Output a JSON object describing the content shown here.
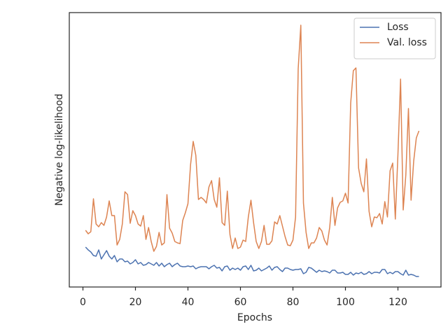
{
  "chart_data": {
    "type": "line",
    "xlabel": "Epochs",
    "ylabel": "Negative log-likelihood",
    "x": [
      1,
      2,
      3,
      4,
      5,
      6,
      7,
      8,
      9,
      10,
      11,
      12,
      13,
      14,
      15,
      16,
      17,
      18,
      19,
      20,
      21,
      22,
      23,
      24,
      25,
      26,
      27,
      28,
      29,
      30,
      31,
      32,
      33,
      34,
      35,
      36,
      37,
      38,
      39,
      40,
      41,
      42,
      43,
      44,
      45,
      46,
      47,
      48,
      49,
      50,
      51,
      52,
      53,
      54,
      55,
      56,
      57,
      58,
      59,
      60,
      61,
      62,
      63,
      64,
      65,
      66,
      67,
      68,
      69,
      70,
      71,
      72,
      73,
      74,
      75,
      76,
      77,
      78,
      79,
      80,
      81,
      82,
      83,
      84,
      85,
      86,
      87,
      88,
      89,
      90,
      91,
      92,
      93,
      94,
      95,
      96,
      97,
      98,
      99,
      100,
      101,
      102,
      103,
      104,
      105,
      106,
      107,
      108,
      109,
      110,
      111,
      112,
      113,
      114,
      115,
      116,
      117,
      118,
      119,
      120,
      121,
      122,
      123,
      124,
      125,
      126,
      127,
      128
    ],
    "series": [
      {
        "name": "Loss",
        "color": "#4c72b0",
        "values": [
          57,
          53,
          50,
          45,
          44,
          53,
          40,
          46,
          52,
          44,
          40,
          45,
          36,
          40,
          40,
          36,
          37,
          33,
          35,
          39,
          33,
          35,
          31,
          32,
          35,
          33,
          31,
          35,
          30,
          34,
          29,
          32,
          34,
          29,
          32,
          34,
          30,
          29,
          29,
          30,
          29,
          30,
          26,
          28,
          29,
          29,
          29,
          26,
          29,
          31,
          27,
          28,
          23,
          29,
          30,
          24,
          27,
          25,
          27,
          24,
          29,
          30,
          25,
          31,
          23,
          24,
          27,
          23,
          25,
          27,
          30,
          24,
          28,
          29,
          25,
          22,
          27,
          27,
          25,
          24,
          25,
          25,
          26,
          19,
          21,
          28,
          27,
          24,
          21,
          24,
          22,
          23,
          22,
          20,
          24,
          24,
          20,
          20,
          21,
          18,
          18,
          21,
          17,
          20,
          19,
          21,
          18,
          19,
          22,
          19,
          21,
          21,
          20,
          25,
          25,
          19,
          21,
          19,
          22,
          22,
          19,
          17,
          24,
          17,
          18,
          17,
          15,
          15
        ]
      },
      {
        "name": "Val. loss",
        "color": "#dd8452",
        "values": [
          81,
          76,
          79,
          126,
          90,
          86,
          92,
          88,
          100,
          123,
          102,
          102,
          60,
          68,
          90,
          136,
          132,
          91,
          109,
          102,
          90,
          87,
          102,
          68,
          85,
          65,
          51,
          58,
          78,
          60,
          63,
          132,
          84,
          77,
          65,
          63,
          62,
          95,
          106,
          119,
          175,
          208,
          188,
          125,
          128,
          125,
          120,
          143,
          152,
          125,
          114,
          156,
          92,
          88,
          137,
          75,
          55,
          70,
          55,
          57,
          67,
          65,
          100,
          124,
          92,
          65,
          55,
          65,
          88,
          61,
          61,
          66,
          93,
          90,
          102,
          87,
          72,
          60,
          59,
          67,
          100,
          312,
          374,
          120,
          78,
          55,
          63,
          63,
          70,
          85,
          80,
          67,
          60,
          85,
          128,
          88,
          113,
          121,
          123,
          134,
          120,
          263,
          309,
          313,
          170,
          148,
          136,
          183,
          108,
          86,
          100,
          99,
          105,
          90,
          122,
          100,
          166,
          177,
          97,
          190,
          297,
          110,
          160,
          255,
          124,
          180,
          213,
          223
        ]
      }
    ],
    "xlim": [
      -5.2,
      136.4
    ],
    "xticks": [
      0,
      20,
      40,
      60,
      80,
      100,
      120
    ],
    "ylim": [
      0,
      392
    ],
    "legend": "upper right"
  }
}
